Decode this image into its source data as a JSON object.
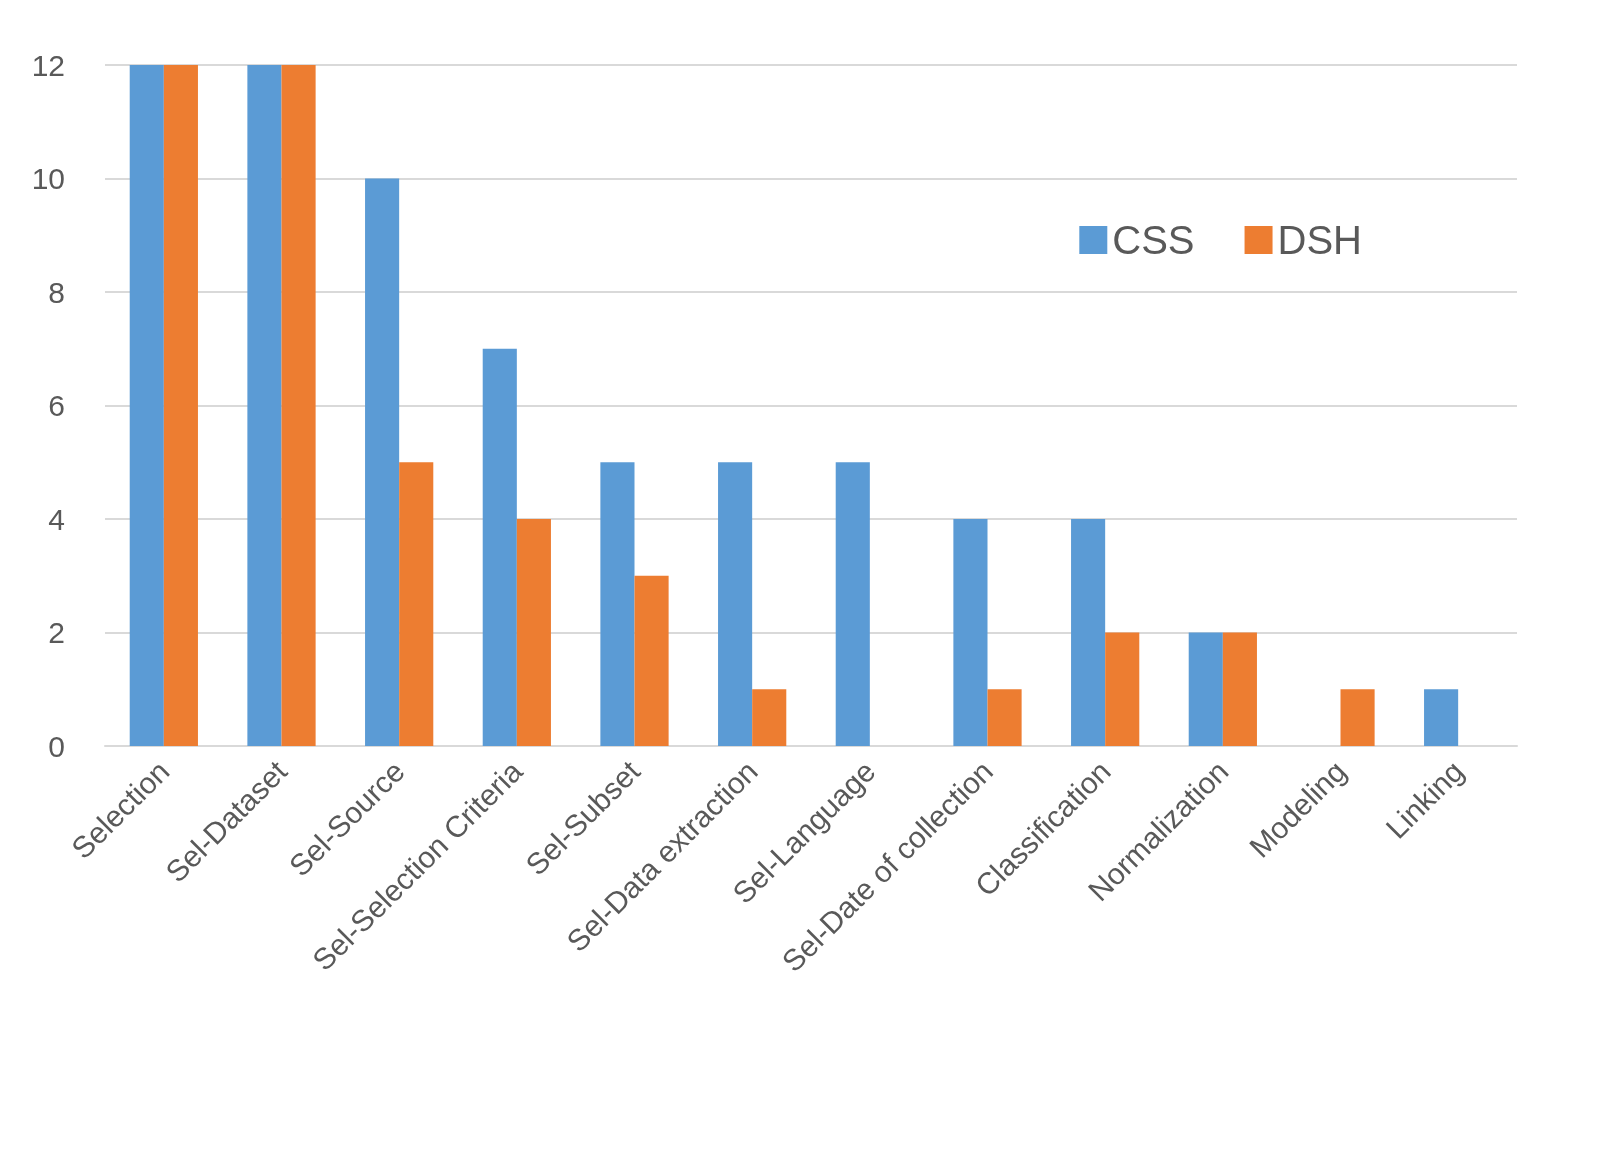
{
  "chart_data": {
    "type": "bar",
    "categories": [
      "Selection",
      "Sel-Dataset",
      "Sel-Source",
      "Sel-Selection Criteria",
      "Sel-Subset",
      "Sel-Data extraction",
      "Sel-Language",
      "Sel-Date of collection",
      "Classification",
      "Normalization",
      "Modeling",
      "Linking"
    ],
    "series": [
      {
        "name": "CSS",
        "color": "#5b9bd5",
        "values": [
          12,
          12,
          10,
          7,
          5,
          5,
          5,
          4,
          4,
          2,
          0,
          1
        ]
      },
      {
        "name": "DSH",
        "color": "#ed7d31",
        "values": [
          12,
          12,
          5,
          4,
          3,
          1,
          0,
          1,
          2,
          2,
          1,
          0
        ]
      }
    ],
    "ylim": [
      0,
      12
    ],
    "yticks": [
      0,
      2,
      4,
      6,
      8,
      10,
      12
    ],
    "grid": "y",
    "legend": "top right"
  }
}
